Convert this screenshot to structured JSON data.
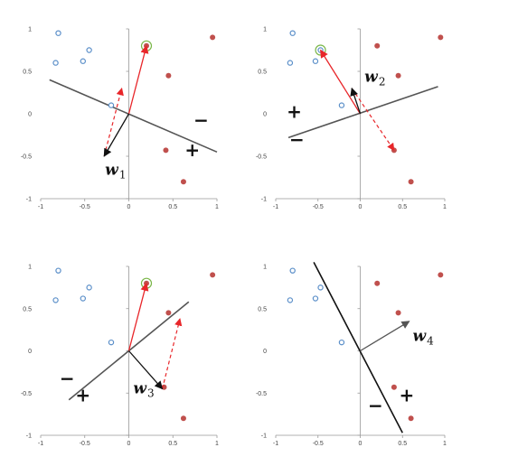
{
  "chart_data": [
    {
      "type": "scatter",
      "xlim": [
        -1,
        1
      ],
      "ylim": [
        -1,
        1
      ],
      "x_ticks": [
        "-1",
        "-0.5",
        "0",
        "0.5",
        "1"
      ],
      "y_ticks": [
        "1",
        "0.5",
        "0",
        "-0.5",
        "-1"
      ],
      "grid": false,
      "open_points": [
        [
          -0.8,
          0.95
        ],
        [
          -0.45,
          0.75
        ],
        [
          -0.52,
          0.62
        ],
        [
          -0.83,
          0.6
        ],
        [
          -0.2,
          0.1
        ]
      ],
      "filled_points": [
        [
          0.2,
          0.8
        ],
        [
          0.95,
          0.9
        ],
        [
          0.45,
          0.45
        ],
        [
          0.42,
          -0.43
        ],
        [
          0.62,
          -0.8
        ]
      ],
      "highlighted_point": [
        0.2,
        0.8
      ],
      "boundary": [
        [
          -0.9,
          0.4
        ],
        [
          1.0,
          -0.45
        ]
      ],
      "w_vector": [
        [
          0,
          0
        ],
        [
          -0.28,
          -0.5
        ]
      ],
      "x_vector": [
        [
          0,
          0
        ],
        [
          0.2,
          0.8
        ]
      ],
      "dashed_vector": [
        [
          -0.28,
          -0.5
        ],
        [
          -0.08,
          0.3
        ]
      ],
      "w_label": "w",
      "w_subscript": "1",
      "plus_sign": "+",
      "minus_sign": "−",
      "plus_at": [
        0.72,
        -0.5
      ],
      "minus_at": [
        0.82,
        -0.15
      ]
    },
    {
      "type": "scatter",
      "xlim": [
        -1,
        1
      ],
      "ylim": [
        -1,
        1
      ],
      "x_ticks": [
        "-1",
        "-0.5",
        "0",
        "0.5",
        "1"
      ],
      "y_ticks": [
        "1",
        "0.5",
        "0",
        "-0.5",
        "-1"
      ],
      "grid": false,
      "open_points": [
        [
          -0.8,
          0.95
        ],
        [
          -0.47,
          0.75
        ],
        [
          -0.53,
          0.62
        ],
        [
          -0.83,
          0.6
        ],
        [
          -0.22,
          0.1
        ]
      ],
      "filled_points": [
        [
          0.2,
          0.8
        ],
        [
          0.95,
          0.9
        ],
        [
          0.45,
          0.45
        ],
        [
          0.4,
          -0.43
        ],
        [
          0.6,
          -0.8
        ]
      ],
      "highlighted_point": [
        -0.47,
        0.75
      ],
      "boundary": [
        [
          -0.85,
          -0.28
        ],
        [
          0.92,
          0.32
        ]
      ],
      "w_vector": [
        [
          0,
          0
        ],
        [
          -0.1,
          0.3
        ]
      ],
      "x_vector": [
        [
          0,
          0
        ],
        [
          -0.47,
          0.75
        ]
      ],
      "dashed_vector": [
        [
          -0.1,
          0.3
        ],
        [
          0.4,
          -0.43
        ]
      ],
      "w_label": "w",
      "w_subscript": "2",
      "plus_sign": "+",
      "minus_sign": "−",
      "plus_at": [
        -0.78,
        -0.05
      ],
      "minus_at": [
        -0.75,
        -0.38
      ]
    },
    {
      "type": "scatter",
      "xlim": [
        -1,
        1
      ],
      "ylim": [
        -1,
        1
      ],
      "x_ticks": [
        "-1",
        "-0.5",
        "0",
        "0.5",
        "1"
      ],
      "y_ticks": [
        "1",
        "0.5",
        "0",
        "-0.5",
        "-1"
      ],
      "grid": false,
      "open_points": [
        [
          -0.8,
          0.95
        ],
        [
          -0.45,
          0.75
        ],
        [
          -0.52,
          0.62
        ],
        [
          -0.83,
          0.6
        ],
        [
          -0.2,
          0.1
        ]
      ],
      "filled_points": [
        [
          0.2,
          0.8
        ],
        [
          0.95,
          0.9
        ],
        [
          0.45,
          0.45
        ],
        [
          0.4,
          -0.43
        ],
        [
          0.62,
          -0.8
        ]
      ],
      "highlighted_point": [
        0.2,
        0.8
      ],
      "boundary": [
        [
          -0.68,
          -0.58
        ],
        [
          0.68,
          0.58
        ]
      ],
      "w_vector": [
        [
          0,
          0
        ],
        [
          0.38,
          -0.45
        ]
      ],
      "x_vector": [
        [
          0,
          0
        ],
        [
          0.2,
          0.8
        ]
      ],
      "dashed_vector": [
        [
          0.38,
          -0.45
        ],
        [
          0.58,
          0.38
        ]
      ],
      "w_label": "w",
      "w_subscript": "3",
      "plus_sign": "+",
      "minus_sign": "−",
      "plus_at": [
        -0.52,
        -0.6
      ],
      "minus_at": [
        -0.7,
        -0.4
      ]
    },
    {
      "type": "scatter",
      "xlim": [
        -1,
        1
      ],
      "ylim": [
        -1,
        1
      ],
      "x_ticks": [
        "-1",
        "-0.5",
        "0",
        "0.5",
        "1"
      ],
      "y_ticks": [
        "1",
        "0.5",
        "0",
        "-0.5",
        "-1"
      ],
      "grid": false,
      "open_points": [
        [
          -0.8,
          0.95
        ],
        [
          -0.47,
          0.75
        ],
        [
          -0.53,
          0.62
        ],
        [
          -0.83,
          0.6
        ],
        [
          -0.22,
          0.1
        ]
      ],
      "filled_points": [
        [
          0.2,
          0.8
        ],
        [
          0.95,
          0.9
        ],
        [
          0.45,
          0.45
        ],
        [
          0.4,
          -0.43
        ],
        [
          0.6,
          -0.8
        ]
      ],
      "highlighted_point": null,
      "boundary": [
        [
          -0.55,
          1.05
        ],
        [
          0.5,
          -0.97
        ]
      ],
      "w_vector": [
        [
          0,
          0
        ],
        [
          0.58,
          0.35
        ]
      ],
      "x_vector": null,
      "dashed_vector": null,
      "w_label": "w",
      "w_subscript": "4",
      "plus_sign": "+",
      "minus_sign": "−",
      "plus_at": [
        0.55,
        -0.6
      ],
      "minus_at": [
        0.18,
        -0.72
      ]
    }
  ],
  "colors": {
    "open_point": "#5b8fc9",
    "filled_point": "#c0504d",
    "highlight_ring": "#7ab648",
    "boundary": "#555555",
    "x_vector": "#e8262a",
    "w_vector": "#111111"
  }
}
